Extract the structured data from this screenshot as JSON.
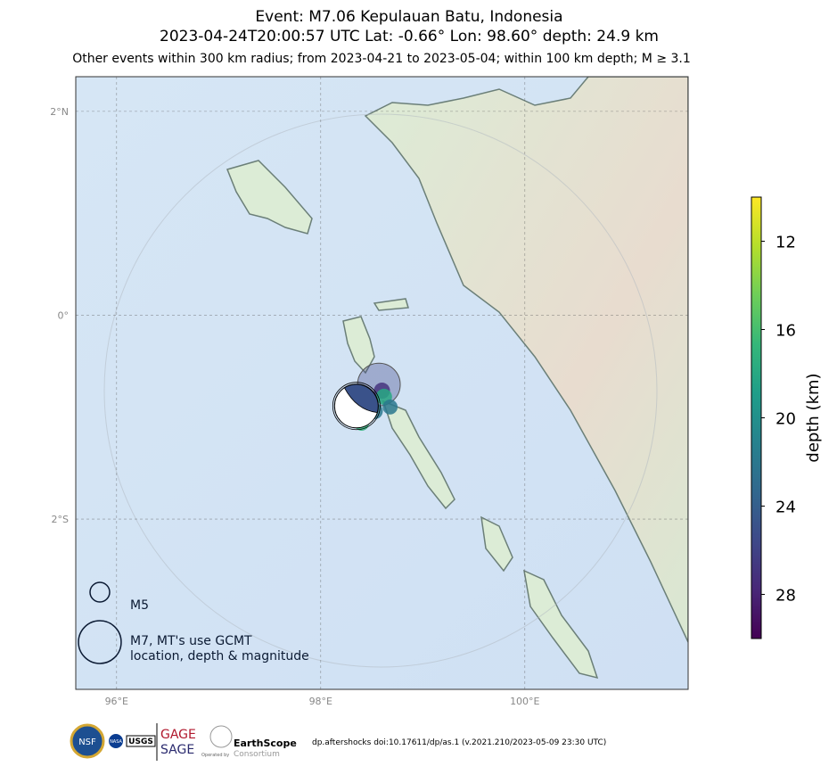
{
  "header": {
    "title": "Event: M7.06 Kepulauan Batu, Indonesia",
    "subtitle_line": "2023-04-24T20:00:57 UTC Lat: -0.66° Lon: 98.60° depth: 24.9 km",
    "subtitle": "Other events within 300 km radius; from 2023-04-21 to 2023-05-04; within 100 km depth; M ≥ 3.1"
  },
  "map": {
    "xlim": [
      95.6,
      101.6
    ],
    "ylim": [
      -3.67,
      2.34
    ],
    "xticks": [
      {
        "value": 96,
        "label": "96°E"
      },
      {
        "value": 98,
        "label": "98°E"
      },
      {
        "value": 100,
        "label": "100°E"
      }
    ],
    "yticks": [
      {
        "value": 2,
        "label": "2°N"
      },
      {
        "value": 0,
        "label": "0°"
      },
      {
        "value": -2,
        "label": "2°S"
      }
    ],
    "grid": true,
    "mainshock": {
      "lon": 98.35,
      "lat": -0.89,
      "depth": 24.9,
      "magnitude": 7.06
    },
    "events": [
      {
        "lon": 98.57,
        "lat": -0.68,
        "depth": 26,
        "magnitude": 7.0
      },
      {
        "lon": 98.6,
        "lat": -0.74,
        "depth": 27,
        "magnitude": 4.5
      },
      {
        "lon": 98.44,
        "lat": -0.85,
        "depth": 24,
        "magnitude": 4.5
      },
      {
        "lon": 98.62,
        "lat": -0.8,
        "depth": 18,
        "magnitude": 4.5
      },
      {
        "lon": 98.68,
        "lat": -0.9,
        "depth": 22,
        "magnitude": 4.3
      },
      {
        "lon": 98.53,
        "lat": -0.94,
        "depth": 22,
        "magnitude": 4.5
      },
      {
        "lon": 98.4,
        "lat": -1.06,
        "depth": 17,
        "magnitude": 4.3
      }
    ]
  },
  "colorbar": {
    "label": "depth (km)",
    "lim": [
      10,
      30
    ],
    "ticks": [
      12,
      16,
      20,
      24,
      28
    ],
    "colormap": [
      "#440154",
      "#482878",
      "#3e4989",
      "#31688e",
      "#26828e",
      "#1f9e89",
      "#35b779",
      "#6ece58",
      "#b5de2b",
      "#fde725"
    ]
  },
  "legend": {
    "entries": [
      {
        "magnitude": 5,
        "lines": [
          "M5"
        ]
      },
      {
        "magnitude": 7,
        "lines": [
          "M7, MT's use GCMT",
          "location, depth & magnitude"
        ]
      }
    ]
  },
  "footer": {
    "logos": [
      "NSF",
      "NASA",
      "USGS",
      "GAGE",
      "SAGE",
      "EarthScope",
      "Consortium",
      "Operated by"
    ],
    "note": "dp.aftershocks doi:10.17611/dp/as.1 (v.2021.210/2023-05-09 23:30 UTC)"
  }
}
